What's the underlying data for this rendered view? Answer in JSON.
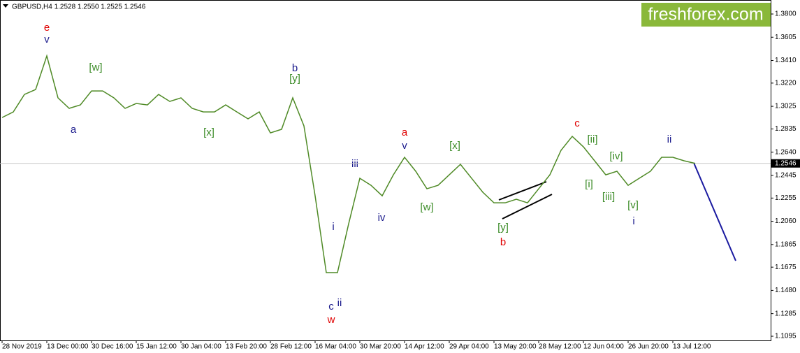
{
  "chart_data": {
    "type": "line",
    "title": "GBPUSD,H4  1.2528 1.2550 1.2525 1.2546",
    "brand": "freshforex.com",
    "color": "#4f8a26",
    "categories": [
      "28 Nov 2019",
      null,
      null,
      null,
      "13 Dec 00:00",
      null,
      null,
      null,
      "30 Dec 16:00",
      null,
      null,
      null,
      "15 Jan 12:00",
      null,
      null,
      null,
      "30 Jan 04:00",
      null,
      null,
      null,
      "13 Feb 20:00",
      null,
      null,
      null,
      "28 Feb 12:00",
      null,
      null,
      null,
      "16 Mar 04:00",
      null,
      null,
      null,
      "30 Mar 20:00",
      null,
      null,
      null,
      "14 Apr 12:00",
      null,
      null,
      null,
      "29 Apr 04:00",
      null,
      null,
      null,
      "13 May 20:00",
      null,
      null,
      null,
      "28 May 12:00",
      null,
      null,
      null,
      "12 Jun 04:00",
      null,
      null,
      null,
      "26 Jun 20:00",
      null,
      null,
      null,
      "13 Jul 12:00",
      null,
      null,
      null,
      null,
      null,
      null,
      null,
      null
    ],
    "values": [
      1.2931,
      1.2978,
      1.3125,
      1.3166,
      1.3448,
      1.3096,
      1.3008,
      1.3037,
      1.3154,
      1.3154,
      1.3096,
      1.3008,
      1.3049,
      1.3037,
      1.3125,
      1.3066,
      1.3096,
      1.3008,
      1.2978,
      1.2978,
      1.3037,
      1.2978,
      1.292,
      1.2978,
      1.2802,
      1.2832,
      1.3096,
      1.2861,
      1.2274,
      1.1629,
      1.1629,
      1.2039,
      1.2421,
      1.2362,
      1.2274,
      1.245,
      1.2597,
      1.248,
      1.2333,
      1.2362,
      1.245,
      1.2538,
      1.2421,
      1.2304,
      1.2215,
      1.2215,
      1.2245,
      1.2215,
      1.2333,
      1.245,
      1.2656,
      1.2773,
      1.2685,
      1.2568,
      1.245,
      1.248,
      1.2362,
      1.2421,
      1.248,
      1.2597,
      1.2597,
      1.2568,
      1.2546,
      null,
      null,
      null,
      null,
      null,
      null
    ],
    "ylim": [
      1.106,
      1.3894
    ],
    "yticks": [
      {
        "value": 1.38,
        "label": "1.3800"
      },
      {
        "value": 1.3605,
        "label": "1.3605"
      },
      {
        "value": 1.341,
        "label": "1.3410"
      },
      {
        "value": 1.322,
        "label": "1.3220"
      },
      {
        "value": 1.3025,
        "label": "1.3025"
      },
      {
        "value": 1.2835,
        "label": "1.2835"
      },
      {
        "value": 1.264,
        "label": "1.2640"
      },
      {
        "value": 1.2445,
        "label": "1.2445"
      },
      {
        "value": 1.2255,
        "label": "1.2255"
      },
      {
        "value": 1.206,
        "label": "1.2060"
      },
      {
        "value": 1.1865,
        "label": "1.1865"
      },
      {
        "value": 1.1675,
        "label": "1.1675"
      },
      {
        "value": 1.148,
        "label": "1.1480"
      },
      {
        "value": 1.1285,
        "label": "1.1285"
      },
      {
        "value": 1.1095,
        "label": "1.1095"
      }
    ],
    "current_price": {
      "value": 1.2546,
      "label": "1.2546"
    },
    "annotations": [
      {
        "text": "e",
        "color": "#e00000"
      },
      {
        "text": "v",
        "color": "#1a1a8c"
      },
      {
        "text": "[w]",
        "color": "#3c8c28"
      },
      {
        "text": "a",
        "color": "#1a1a8c"
      },
      {
        "text": "b",
        "color": "#1a1a8c"
      },
      {
        "text": "[y]",
        "color": "#3c8c28"
      },
      {
        "text": "[x]",
        "color": "#3c8c28"
      },
      {
        "text": "a",
        "color": "#e00000"
      },
      {
        "text": "v",
        "color": "#1a1a8c"
      },
      {
        "text": "[x]",
        "color": "#3c8c28"
      },
      {
        "text": "iii",
        "color": "#1a1a8c"
      },
      {
        "text": "iv",
        "color": "#1a1a8c"
      },
      {
        "text": "[w]",
        "color": "#3c8c28"
      },
      {
        "text": "i",
        "color": "#1a1a8c"
      },
      {
        "text": "c",
        "color": "#1a1a8c"
      },
      {
        "text": "ii",
        "color": "#1a1a8c"
      },
      {
        "text": "w",
        "color": "#e00000"
      },
      {
        "text": "[y]",
        "color": "#3c8c28"
      },
      {
        "text": "b",
        "color": "#e00000"
      },
      {
        "text": "c",
        "color": "#e00000"
      },
      {
        "text": "[ii]",
        "color": "#3c8c28"
      },
      {
        "text": "[i]",
        "color": "#3c8c28"
      },
      {
        "text": "[iv]",
        "color": "#3c8c28"
      },
      {
        "text": "[iii]",
        "color": "#3c8c28"
      },
      {
        "text": "[v]",
        "color": "#3c8c28"
      },
      {
        "text": "i",
        "color": "#1a1a8c"
      },
      {
        "text": "ii",
        "color": "#1a1a8c"
      }
    ]
  }
}
